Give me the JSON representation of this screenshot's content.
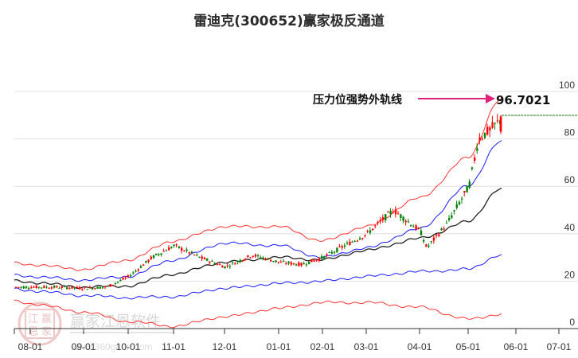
{
  "header": {
    "title": "雷迪克(300652)赢家极反通道"
  },
  "annotation": {
    "label": "压力位强势外轨线",
    "value": "96.7021",
    "arrow_color": "#e0207a"
  },
  "watermark": {
    "text": "赢家江恩软件",
    "url": "www.360gann.com",
    "seal_chars": [
      "江",
      "赢",
      "恩",
      "家"
    ]
  },
  "colors": {
    "up_candle": "#ff0000",
    "down_candle": "#008000",
    "outer_band": "#ff3333",
    "inner_band": "#1a1aff",
    "mid_line": "#222222",
    "grid": "#e0e0e0",
    "last_price_line": "#008000"
  },
  "chart_data": {
    "type": "candlestick",
    "title": "雷迪克(300652)赢家极反通道",
    "xlabel": "",
    "ylabel": "",
    "ylim": [
      0,
      100
    ],
    "yticks": [
      0,
      20,
      40,
      60,
      80,
      100
    ],
    "x_tick_labels": [
      "08-01",
      "09-01",
      "10-01",
      "11-01",
      "12-01",
      "01-01",
      "02-01",
      "03-01",
      "04-01",
      "05-01",
      "06-01",
      "07-01"
    ],
    "grid": true,
    "legend": "none",
    "annotations": [
      {
        "text": "压力位强势外轨线",
        "value": 96.7021,
        "target": "outer upper band (last)"
      }
    ],
    "series": [
      {
        "name": "close (approx.)",
        "x": [
          "08-01",
          "08-15",
          "09-01",
          "09-15",
          "10-01",
          "10-15",
          "11-01",
          "11-15",
          "12-01",
          "12-15",
          "01-01",
          "01-15",
          "02-01",
          "02-15",
          "03-01",
          "03-15",
          "04-01",
          "04-10",
          "04-20",
          "05-01",
          "05-10",
          "05-20",
          "05-27"
        ],
        "values": [
          17.5,
          17.5,
          17,
          17.5,
          22,
          30,
          35,
          30,
          26,
          31,
          28,
          27,
          30,
          35,
          40,
          50,
          41,
          34,
          44,
          60,
          80,
          84,
          88
        ]
      },
      {
        "name": "outer upper band",
        "x": [
          "08-01",
          "09-01",
          "10-01",
          "11-01",
          "12-01",
          "01-01",
          "02-01",
          "03-01",
          "04-01",
          "05-01",
          "05-27"
        ],
        "values": [
          27,
          25,
          29,
          37,
          43,
          43,
          37,
          43,
          55,
          72,
          96.7
        ]
      },
      {
        "name": "inner upper band",
        "x": [
          "08-01",
          "09-01",
          "10-01",
          "11-01",
          "12-01",
          "01-01",
          "02-01",
          "03-01",
          "04-01",
          "05-01",
          "05-27"
        ],
        "values": [
          22,
          20.5,
          22,
          29,
          36,
          35,
          30,
          34,
          42,
          60,
          79
        ]
      },
      {
        "name": "middle line",
        "x": [
          "08-01",
          "09-01",
          "10-01",
          "11-01",
          "12-01",
          "01-01",
          "02-01",
          "03-01",
          "04-01",
          "05-01",
          "05-27"
        ],
        "values": [
          19.5,
          17.5,
          18,
          23,
          28,
          30,
          29,
          33,
          38,
          45,
          59
        ]
      },
      {
        "name": "inner lower band",
        "x": [
          "08-01",
          "09-01",
          "10-01",
          "11-01",
          "12-01",
          "01-01",
          "02-01",
          "03-01",
          "04-01",
          "05-01",
          "05-27"
        ],
        "values": [
          16,
          14,
          13,
          13.5,
          17,
          19,
          20,
          22,
          24,
          25,
          31
        ]
      },
      {
        "name": "outer lower band",
        "x": [
          "08-01",
          "09-01",
          "10-01",
          "11-01",
          "12-01",
          "01-01",
          "02-01",
          "03-01",
          "04-01",
          "05-01",
          "05-27"
        ],
        "values": [
          10.5,
          7,
          3,
          1,
          5,
          8.5,
          11,
          11,
          9,
          4,
          6
        ]
      }
    ]
  }
}
